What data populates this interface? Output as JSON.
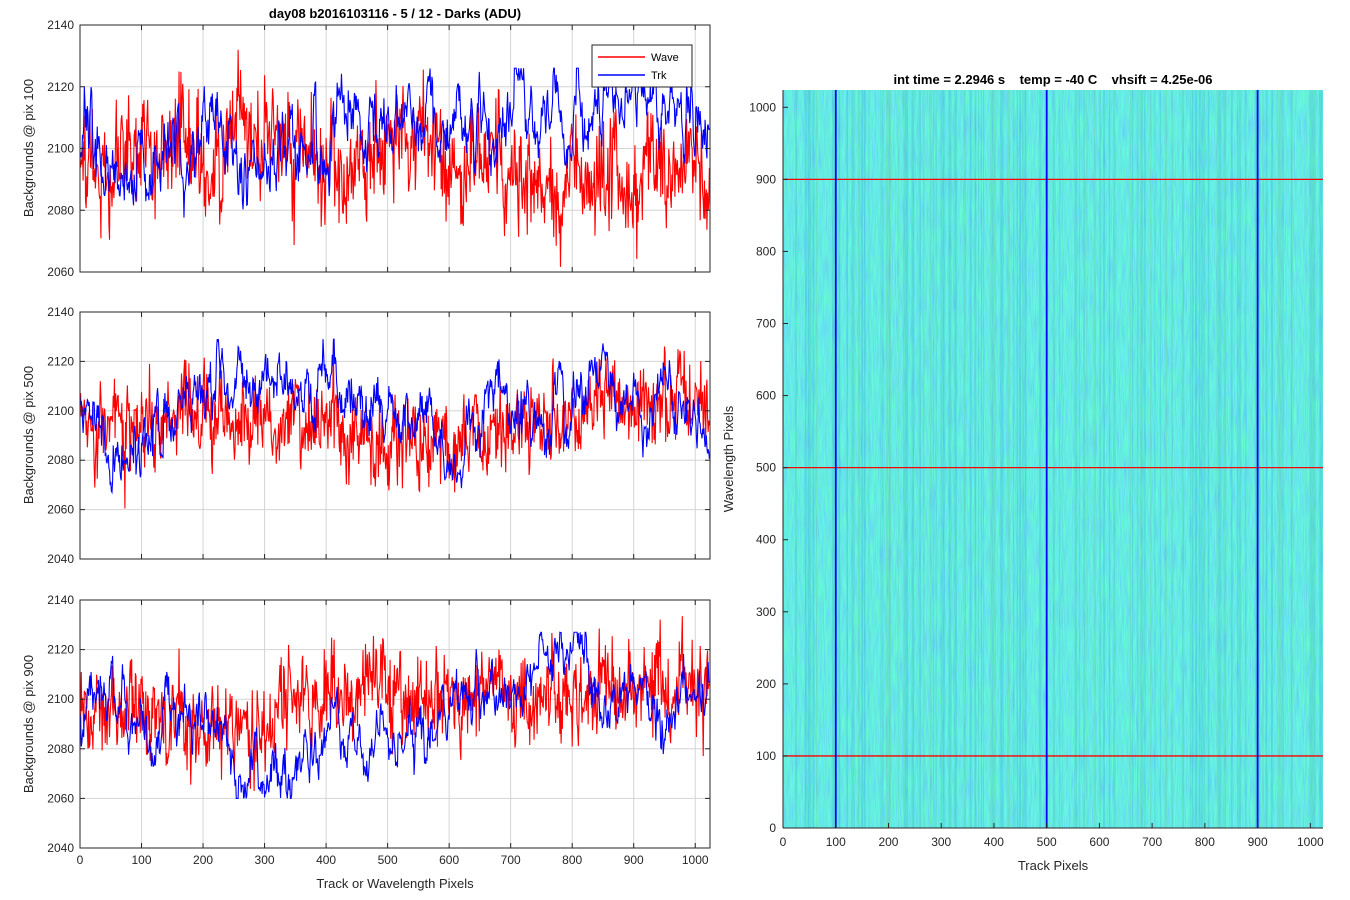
{
  "figure_title": "day08 b2016103116 - 5 / 12 - Darks (ADU)",
  "legend": {
    "wave": "Wave",
    "trk": "Trk"
  },
  "colors": {
    "wave": "#ff0000",
    "trk": "#0000ff",
    "grid": "#d4d4d4",
    "axis": "#262626"
  },
  "chart_data": [
    {
      "type": "line",
      "ylabel": "Backgrounds @ pix 100",
      "xlabel": "",
      "xlim": [
        0,
        1024
      ],
      "ylim": [
        2060,
        2140
      ],
      "xticks": [
        0,
        100,
        200,
        300,
        400,
        500,
        600,
        700,
        800,
        900,
        1000
      ],
      "yticks": [
        2060,
        2080,
        2100,
        2120,
        2140
      ],
      "grid": true,
      "legend_position": "top-right",
      "series": [
        {
          "name": "Wave",
          "color": "#ff0000",
          "mean": 2097,
          "noise_sd": 9,
          "range": [
            2061,
            2132
          ]
        },
        {
          "name": "Trk",
          "color": "#0000ff",
          "mean": 2098,
          "noise_sd": 6,
          "range": [
            2064,
            2126
          ]
        }
      ]
    },
    {
      "type": "line",
      "ylabel": "Backgrounds @ pix 500",
      "xlabel": "",
      "xlim": [
        0,
        1024
      ],
      "ylim": [
        2040,
        2140
      ],
      "xticks": [
        0,
        100,
        200,
        300,
        400,
        500,
        600,
        700,
        800,
        900,
        1000
      ],
      "yticks": [
        2040,
        2060,
        2080,
        2100,
        2120,
        2140
      ],
      "grid": true,
      "series": [
        {
          "name": "Wave",
          "color": "#ff0000",
          "mean": 2097,
          "noise_sd": 9,
          "range": [
            2060,
            2132
          ]
        },
        {
          "name": "Trk",
          "color": "#0000ff",
          "mean": 2098,
          "noise_sd": 6,
          "range": [
            2067,
            2129
          ]
        }
      ]
    },
    {
      "type": "line",
      "ylabel": "Backgrounds @ pix 900",
      "xlabel": "Track or Wavelength Pixels",
      "xlim": [
        0,
        1024
      ],
      "ylim": [
        2040,
        2140
      ],
      "xticks": [
        0,
        100,
        200,
        300,
        400,
        500,
        600,
        700,
        800,
        900,
        1000
      ],
      "yticks": [
        2040,
        2060,
        2080,
        2100,
        2120,
        2140
      ],
      "grid": true,
      "series": [
        {
          "name": "Wave",
          "color": "#ff0000",
          "mean": 2097,
          "noise_sd": 9,
          "range": [
            2063,
            2136
          ]
        },
        {
          "name": "Trk",
          "color": "#0000ff",
          "mean": 2097,
          "noise_sd": 6,
          "range": [
            2060,
            2127
          ]
        }
      ]
    },
    {
      "type": "heatmap",
      "title": "int time = 2.2946 s    temp = -40 C    vhsift = 4.25e-06",
      "xlabel": "Track Pixels",
      "ylabel": "Wavelength Pixels",
      "xlim": [
        0,
        1024
      ],
      "ylim": [
        0,
        1024
      ],
      "xticks": [
        0,
        100,
        200,
        300,
        400,
        500,
        600,
        700,
        800,
        900,
        1000
      ],
      "yticks": [
        0,
        100,
        200,
        300,
        400,
        500,
        600,
        700,
        800,
        900,
        1000
      ],
      "colormap": [
        "#1f8fcf",
        "#1aa3bd",
        "#3bb29a",
        "#6fbf73"
      ],
      "vertical_lines": {
        "x": [
          100,
          500,
          900
        ],
        "color": "#0000ff"
      },
      "horizontal_lines": {
        "y": [
          100,
          500,
          900
        ],
        "color": "#ff0000"
      }
    }
  ]
}
